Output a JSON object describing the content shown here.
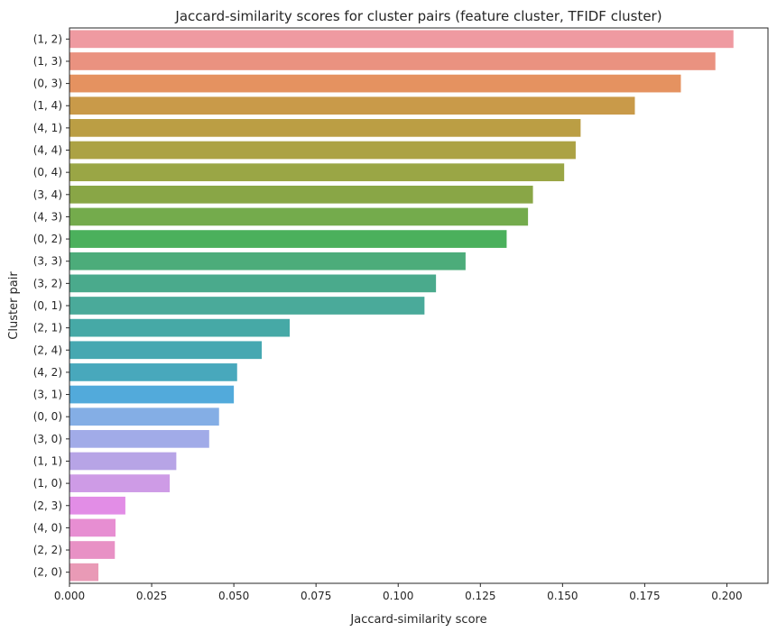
{
  "chart_data": {
    "type": "bar",
    "orientation": "horizontal",
    "title": "Jaccard-similarity scores for cluster pairs (feature cluster, TFIDF cluster)",
    "xlabel": "Jaccard-similarity score",
    "ylabel": "Cluster pair",
    "xlim": [
      0,
      0.2125
    ],
    "xticks": [
      "0.000",
      "0.025",
      "0.050",
      "0.075",
      "0.100",
      "0.125",
      "0.150",
      "0.175",
      "0.200"
    ],
    "xtick_values": [
      0,
      0.025,
      0.05,
      0.075,
      0.1,
      0.125,
      0.15,
      0.175,
      0.2
    ],
    "grid": false,
    "categories": [
      "(1, 2)",
      "(1, 3)",
      "(0, 3)",
      "(1, 4)",
      "(4, 1)",
      "(4, 4)",
      "(0, 4)",
      "(3, 4)",
      "(4, 3)",
      "(0, 2)",
      "(3, 3)",
      "(3, 2)",
      "(0, 1)",
      "(2, 1)",
      "(2, 4)",
      "(4, 2)",
      "(3, 1)",
      "(0, 0)",
      "(3, 0)",
      "(1, 1)",
      "(1, 0)",
      "(2, 3)",
      "(4, 0)",
      "(2, 2)",
      "(2, 0)"
    ],
    "values": [
      0.202,
      0.1965,
      0.186,
      0.172,
      0.1555,
      0.154,
      0.1505,
      0.141,
      0.1395,
      0.133,
      0.1205,
      0.1115,
      0.108,
      0.067,
      0.0585,
      0.051,
      0.05,
      0.0455,
      0.0425,
      0.0325,
      0.0305,
      0.017,
      0.014,
      0.0138,
      0.0088
    ],
    "colors": [
      "#ef9aa1",
      "#ea9280",
      "#e59260",
      "#c99a49",
      "#bb9e44",
      "#aca244",
      "#9aa645",
      "#89a646",
      "#74ab4c",
      "#4bb05c",
      "#4cac7a",
      "#4aaa8c",
      "#4aaa9a",
      "#46a9a6",
      "#46a8b1",
      "#48a8bc",
      "#52aadb",
      "#84aee5",
      "#a1abe8",
      "#b7a4e6",
      "#ce9be6",
      "#e28de6",
      "#e78ed2",
      "#e891c5",
      "#e99ab6"
    ]
  }
}
